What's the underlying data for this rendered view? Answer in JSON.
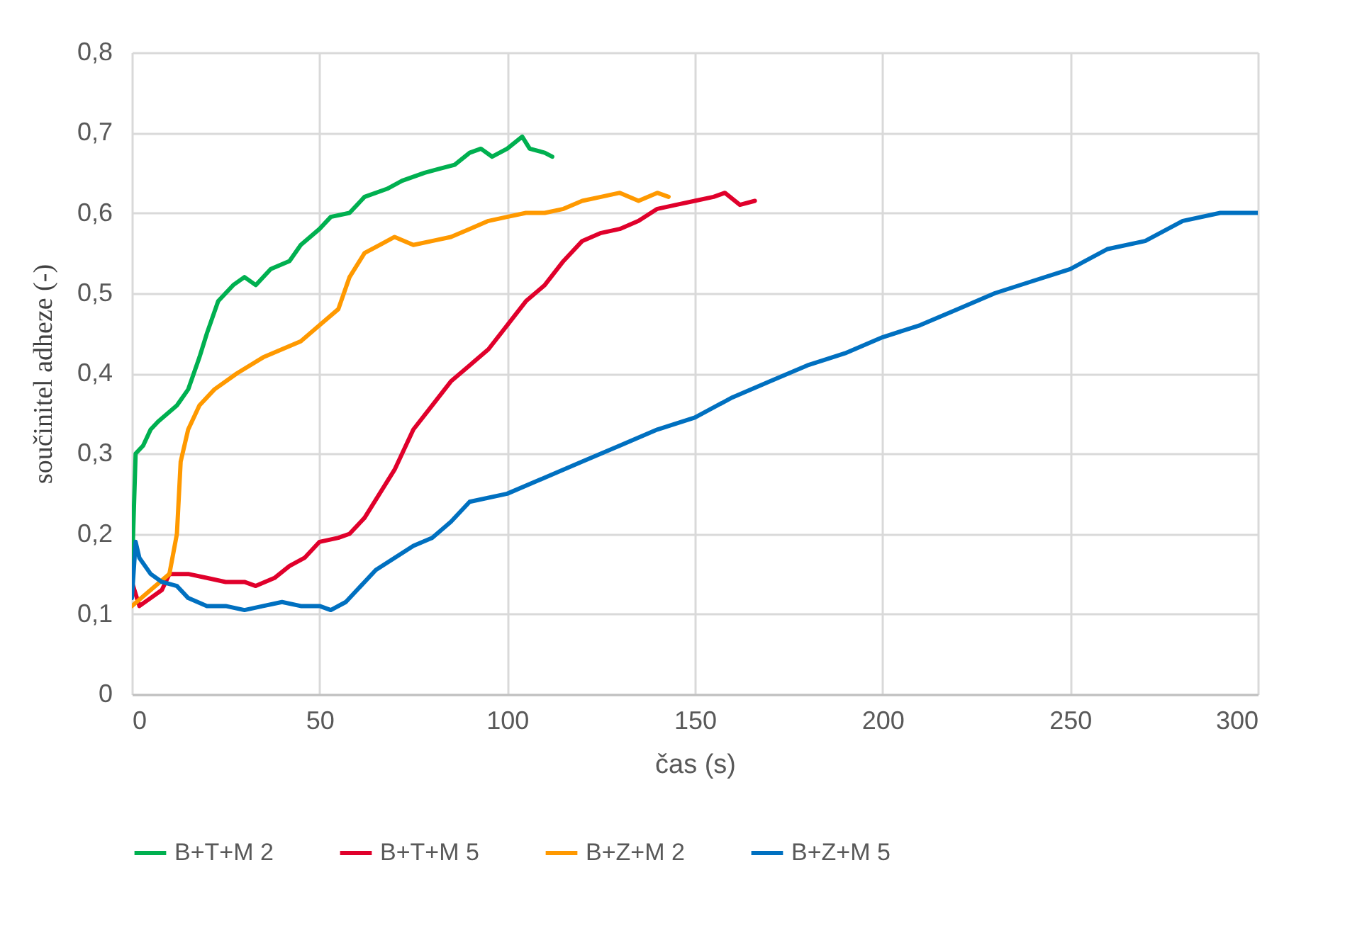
{
  "chart_data": {
    "type": "line",
    "xlabel": "čas (s)",
    "ylabel": "součinitel adheze (-)",
    "xlim": [
      0,
      300
    ],
    "xticks": [
      0,
      50,
      100,
      150,
      200,
      250,
      300
    ],
    "ylim": [
      0,
      0.8
    ],
    "yticks": [
      0,
      {
        "value": 0.1,
        "label": "0,1"
      },
      {
        "value": 0.2,
        "label": "0,2"
      },
      {
        "value": 0.3,
        "label": "0,3"
      },
      {
        "value": 0.4,
        "label": "0,4"
      },
      {
        "value": 0.5,
        "label": "0,5"
      },
      {
        "value": 0.6,
        "label": "0,6"
      },
      {
        "value": 0.7,
        "label": "0,7"
      },
      {
        "value": 0.8,
        "label": "0,8"
      }
    ],
    "grid": true,
    "legend": "bottom",
    "marker": "none",
    "line_style": "solid",
    "series": [
      {
        "name": "B+T+M 2",
        "color": "#00b050",
        "x": [
          0,
          1,
          3,
          5,
          7,
          12,
          15,
          18,
          20,
          23,
          27,
          30,
          33,
          37,
          42,
          45,
          50,
          53,
          58,
          62,
          68,
          72,
          78,
          82,
          86,
          90,
          93,
          96,
          100,
          104,
          106,
          110,
          112
        ],
        "values": [
          0.15,
          0.3,
          0.31,
          0.33,
          0.34,
          0.36,
          0.38,
          0.42,
          0.45,
          0.49,
          0.51,
          0.52,
          0.51,
          0.53,
          0.54,
          0.56,
          0.58,
          0.595,
          0.6,
          0.62,
          0.63,
          0.64,
          0.65,
          0.655,
          0.66,
          0.675,
          0.68,
          0.67,
          0.68,
          0.695,
          0.68,
          0.675,
          0.67
        ]
      },
      {
        "name": "B+T+M 5",
        "color": "#e0002b",
        "x": [
          0,
          2,
          5,
          8,
          10,
          15,
          20,
          25,
          30,
          33,
          38,
          42,
          46,
          50,
          55,
          58,
          62,
          66,
          70,
          75,
          80,
          85,
          90,
          95,
          100,
          105,
          110,
          115,
          120,
          125,
          130,
          135,
          140,
          145,
          150,
          155,
          158,
          162,
          166
        ],
        "values": [
          0.14,
          0.11,
          0.12,
          0.13,
          0.15,
          0.15,
          0.145,
          0.14,
          0.14,
          0.135,
          0.145,
          0.16,
          0.17,
          0.19,
          0.195,
          0.2,
          0.22,
          0.25,
          0.28,
          0.33,
          0.36,
          0.39,
          0.41,
          0.43,
          0.46,
          0.49,
          0.51,
          0.54,
          0.565,
          0.575,
          0.58,
          0.59,
          0.605,
          0.61,
          0.615,
          0.62,
          0.625,
          0.61,
          0.615
        ]
      },
      {
        "name": "B+Z+M 2",
        "color": "#ff9900",
        "x": [
          0,
          5,
          10,
          12,
          13,
          15,
          18,
          22,
          28,
          35,
          40,
          45,
          50,
          55,
          58,
          62,
          66,
          70,
          75,
          80,
          85,
          90,
          95,
          100,
          105,
          110,
          115,
          120,
          125,
          130,
          135,
          140,
          143
        ],
        "values": [
          0.11,
          0.13,
          0.15,
          0.2,
          0.29,
          0.33,
          0.36,
          0.38,
          0.4,
          0.42,
          0.43,
          0.44,
          0.46,
          0.48,
          0.52,
          0.55,
          0.56,
          0.57,
          0.56,
          0.565,
          0.57,
          0.58,
          0.59,
          0.595,
          0.6,
          0.6,
          0.605,
          0.615,
          0.62,
          0.625,
          0.615,
          0.625,
          0.62
        ]
      },
      {
        "name": "B+Z+M 5",
        "color": "#0070c0",
        "x": [
          0,
          1,
          2,
          5,
          8,
          12,
          15,
          20,
          25,
          30,
          35,
          40,
          45,
          50,
          53,
          57,
          60,
          65,
          70,
          75,
          80,
          85,
          90,
          100,
          110,
          120,
          130,
          140,
          150,
          160,
          170,
          180,
          190,
          200,
          210,
          220,
          230,
          240,
          250,
          260,
          270,
          280,
          290,
          300
        ],
        "values": [
          0.12,
          0.19,
          0.17,
          0.15,
          0.14,
          0.135,
          0.12,
          0.11,
          0.11,
          0.105,
          0.11,
          0.115,
          0.11,
          0.11,
          0.105,
          0.115,
          0.13,
          0.155,
          0.17,
          0.185,
          0.195,
          0.215,
          0.24,
          0.25,
          0.27,
          0.29,
          0.31,
          0.33,
          0.345,
          0.37,
          0.39,
          0.41,
          0.425,
          0.445,
          0.46,
          0.48,
          0.5,
          0.515,
          0.53,
          0.555,
          0.565,
          0.59,
          0.6,
          0.6
        ]
      }
    ]
  }
}
